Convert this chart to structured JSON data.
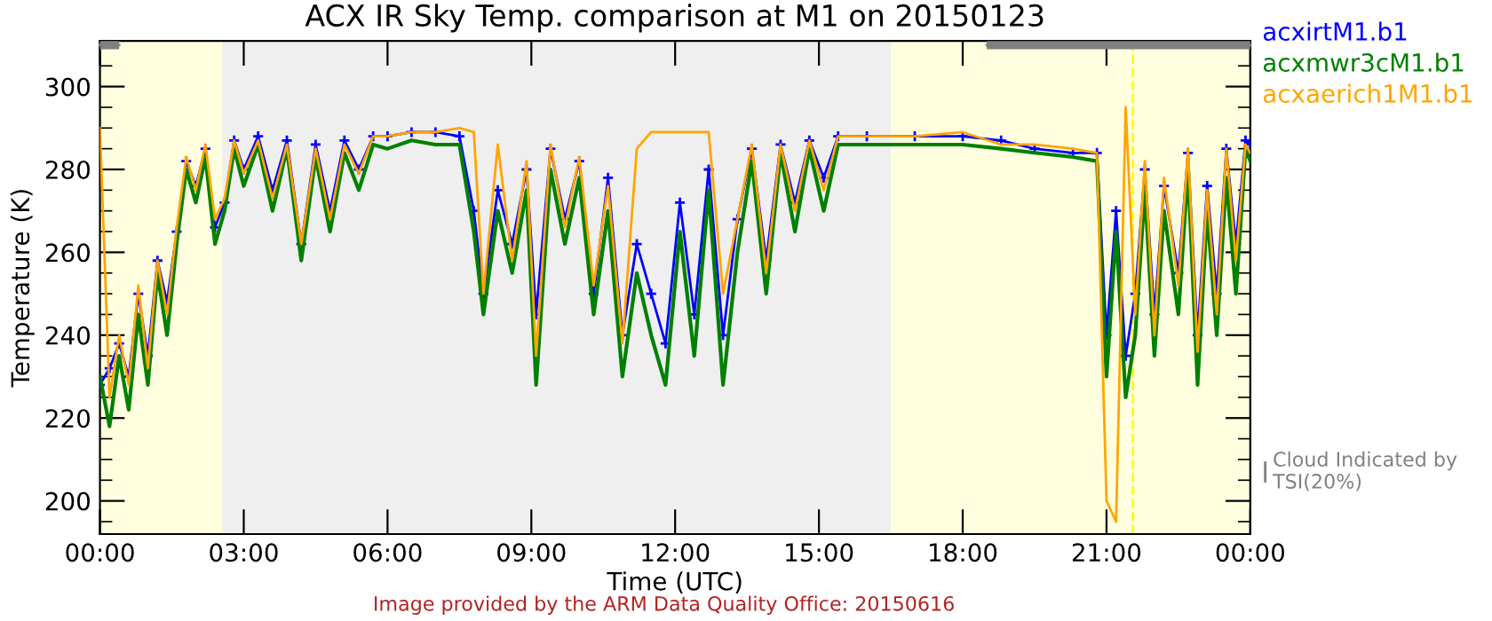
{
  "chart_data": {
    "type": "line",
    "title": "ACX IR Sky Temp. comparison at M1 on 20150123",
    "xlabel": "Time (UTC)",
    "ylabel": "Temperature (K)",
    "x": [
      0.0,
      0.2,
      0.4,
      0.6,
      0.8,
      1.0,
      1.2,
      1.4,
      1.6,
      1.8,
      2.0,
      2.2,
      2.4,
      2.6,
      2.8,
      3.0,
      3.3,
      3.6,
      3.9,
      4.2,
      4.5,
      4.8,
      5.1,
      5.4,
      5.7,
      6.0,
      6.5,
      7.0,
      7.5,
      7.8,
      8.0,
      8.3,
      8.6,
      8.9,
      9.1,
      9.4,
      9.7,
      10.0,
      10.3,
      10.6,
      10.9,
      11.2,
      11.5,
      11.8,
      12.1,
      12.4,
      12.7,
      13.0,
      13.3,
      13.6,
      13.9,
      14.2,
      14.5,
      14.8,
      15.1,
      15.4,
      16.0,
      17.0,
      18.0,
      18.8,
      19.5,
      20.3,
      20.8,
      21.0,
      21.2,
      21.4,
      21.6,
      21.8,
      22.0,
      22.2,
      22.5,
      22.7,
      22.9,
      23.1,
      23.3,
      23.5,
      23.7,
      23.9,
      24.0
    ],
    "series": [
      {
        "name": "acxirtM1.b1",
        "color": "#0000ff",
        "marker": "cross",
        "values": [
          228,
          232,
          238,
          230,
          250,
          235,
          258,
          248,
          265,
          282,
          276,
          285,
          266,
          272,
          287,
          280,
          288,
          275,
          287,
          262,
          286,
          270,
          287,
          280,
          288,
          288,
          289,
          289,
          288,
          270,
          250,
          275,
          262,
          280,
          245,
          285,
          268,
          282,
          250,
          278,
          240,
          262,
          250,
          238,
          272,
          245,
          280,
          240,
          268,
          285,
          258,
          286,
          272,
          287,
          278,
          288,
          288,
          288,
          288,
          287,
          285,
          284,
          284,
          240,
          270,
          235,
          250,
          280,
          245,
          276,
          255,
          284,
          240,
          276,
          250,
          285,
          262,
          287,
          286
        ]
      },
      {
        "name": "acxmwr3cM1.b1",
        "color": "#008000",
        "values": [
          230,
          218,
          235,
          222,
          245,
          228,
          255,
          240,
          262,
          280,
          272,
          283,
          262,
          270,
          285,
          276,
          286,
          270,
          285,
          258,
          283,
          265,
          284,
          275,
          286,
          285,
          287,
          286,
          286,
          265,
          245,
          270,
          255,
          275,
          228,
          280,
          262,
          278,
          245,
          270,
          230,
          255,
          240,
          228,
          265,
          235,
          275,
          228,
          260,
          282,
          250,
          284,
          265,
          285,
          270,
          286,
          286,
          286,
          286,
          285,
          284,
          283,
          282,
          230,
          265,
          225,
          240,
          275,
          235,
          270,
          245,
          280,
          228,
          270,
          240,
          278,
          250,
          285,
          282
        ]
      },
      {
        "name": "acxaerich1M1.b1",
        "color": "#ffa500",
        "values": [
          290,
          225,
          240,
          228,
          252,
          232,
          258,
          245,
          266,
          283,
          275,
          286,
          268,
          273,
          287,
          279,
          287,
          273,
          286,
          262,
          285,
          268,
          286,
          279,
          288,
          288,
          289,
          289,
          290,
          289,
          250,
          286,
          258,
          282,
          235,
          286,
          266,
          283,
          252,
          276,
          238,
          285,
          289,
          289,
          289,
          289,
          289,
          250,
          268,
          286,
          255,
          286,
          270,
          287,
          275,
          288,
          288,
          288,
          289,
          286,
          286,
          285,
          284,
          200,
          195,
          295,
          245,
          282,
          240,
          278,
          252,
          285,
          236,
          275,
          245,
          285,
          258,
          286,
          284
        ]
      },
      {
        "name": "Cloud Indicated by TSI(20%)",
        "type": "line",
        "color": "#808080",
        "x": [
          0,
          0.4,
          9,
          18.5,
          24
        ],
        "values": [
          310,
          310,
          null,
          310,
          310
        ],
        "lower": [
          309,
          309,
          null,
          309,
          309
        ],
        "upper": [
          311,
          311,
          null,
          311,
          311
        ]
      }
    ],
    "xlim": [
      0,
      24
    ],
    "xticks": [
      {
        "value": 0,
        "label": "00:00"
      },
      {
        "value": 3,
        "label": "03:00"
      },
      {
        "value": 6,
        "label": "06:00"
      },
      {
        "value": 9,
        "label": "09:00"
      },
      {
        "value": 12,
        "label": "12:00"
      },
      {
        "value": 15,
        "label": "15:00"
      },
      {
        "value": 18,
        "label": "18:00"
      },
      {
        "value": 21,
        "label": "21:00"
      },
      {
        "value": 24,
        "label": "00:00"
      }
    ],
    "ylim": [
      192,
      311
    ],
    "yticks": [
      {
        "value": 195,
        "label": null
      },
      200,
      {
        "value": 205,
        "label": null
      },
      {
        "value": 210,
        "label": null
      },
      {
        "value": 215,
        "label": null
      },
      220,
      {
        "value": 225,
        "label": null
      },
      {
        "value": 230,
        "label": null
      },
      {
        "value": 235,
        "label": null
      },
      240,
      {
        "value": 245,
        "label": null
      },
      {
        "value": 250,
        "label": null
      },
      {
        "value": 255,
        "label": null
      },
      260,
      {
        "value": 265,
        "label": null
      },
      {
        "value": 270,
        "label": null
      },
      {
        "value": 275,
        "label": null
      },
      280,
      {
        "value": 285,
        "label": null
      },
      {
        "value": 290,
        "label": null
      },
      {
        "value": 295,
        "label": null
      },
      300,
      {
        "value": 305,
        "label": null
      },
      {
        "value": 310,
        "label": null
      }
    ],
    "bands": [
      {
        "axis": "x",
        "from": 0,
        "to": 2.55,
        "color": "#ffffe0"
      },
      {
        "axis": "x",
        "from": 2.55,
        "to": 16.5,
        "color": "#efefef"
      },
      {
        "axis": "x",
        "from": 16.5,
        "to": 24,
        "color": "#ffffe0"
      }
    ],
    "ref_lines": [
      {
        "axis": "x",
        "value": 21.55,
        "color": "#ffff00",
        "line_style": "dashed"
      }
    ],
    "annotations": [
      "Image provided by the ARM Data Quality Office: 20150616"
    ],
    "legend": "right",
    "grid": false
  }
}
